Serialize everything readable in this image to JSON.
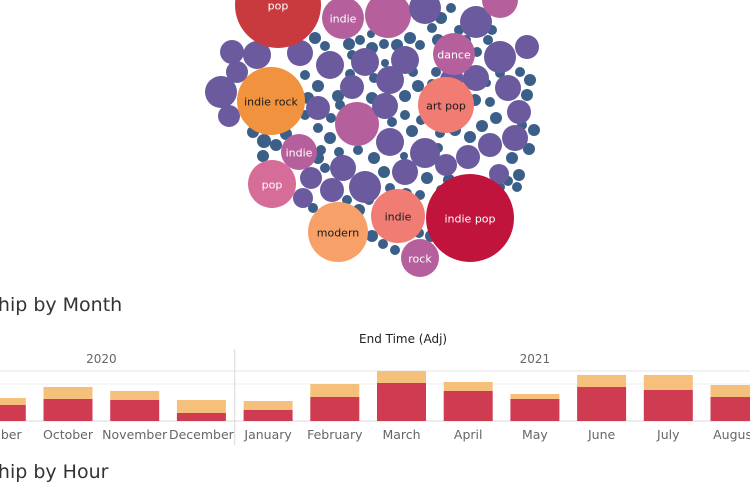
{
  "sections": {
    "month_title": "ship by Month",
    "hour_title": "ship by Hour"
  },
  "colors": {
    "bubble_small": "#3c5f8a",
    "purple": "#6b5b9e",
    "magenta": "#b5609c",
    "pink": "#d56d98",
    "salmon": "#f07c74",
    "orange": "#f0923e",
    "light_orange": "#f7a067",
    "crimson": "#c0143c",
    "brick": "#c93a3f",
    "bar_primary": "#cf3c52",
    "bar_secondary": "#f4c07c"
  },
  "chart_data": [
    {
      "type": "bubble",
      "labeled_bubbles": [
        {
          "label": "pop",
          "color": "brick"
        },
        {
          "label": "indie",
          "color": "magenta"
        },
        {
          "label": "dance",
          "color": "magenta"
        },
        {
          "label": "indie rock",
          "color": "orange"
        },
        {
          "label": "art pop",
          "color": "salmon"
        },
        {
          "label": "indie",
          "color": "magenta"
        },
        {
          "label": "pop",
          "color": "pink"
        },
        {
          "label": "indie",
          "color": "salmon"
        },
        {
          "label": "indie pop",
          "color": "crimson"
        },
        {
          "label": "modern",
          "color": "light_orange"
        },
        {
          "label": "rock",
          "color": "magenta"
        }
      ]
    },
    {
      "type": "bar",
      "stacked": true,
      "xlabel": "End Time (Adj)",
      "years": [
        {
          "label": "2020"
        },
        {
          "label": "2021"
        }
      ],
      "categories": [
        "ember",
        "October",
        "November",
        "December",
        "January",
        "February",
        "March",
        "April",
        "May",
        "June",
        "July",
        "August"
      ],
      "series": [
        {
          "values": [
            16,
            22,
            21,
            8,
            11,
            24,
            38,
            30,
            22,
            34,
            31,
            24
          ]
        },
        {
          "values": [
            7,
            12,
            9,
            13,
            9,
            13,
            12,
            9,
            5,
            12,
            15,
            12
          ]
        }
      ],
      "ylim": [
        0,
        52
      ]
    }
  ]
}
